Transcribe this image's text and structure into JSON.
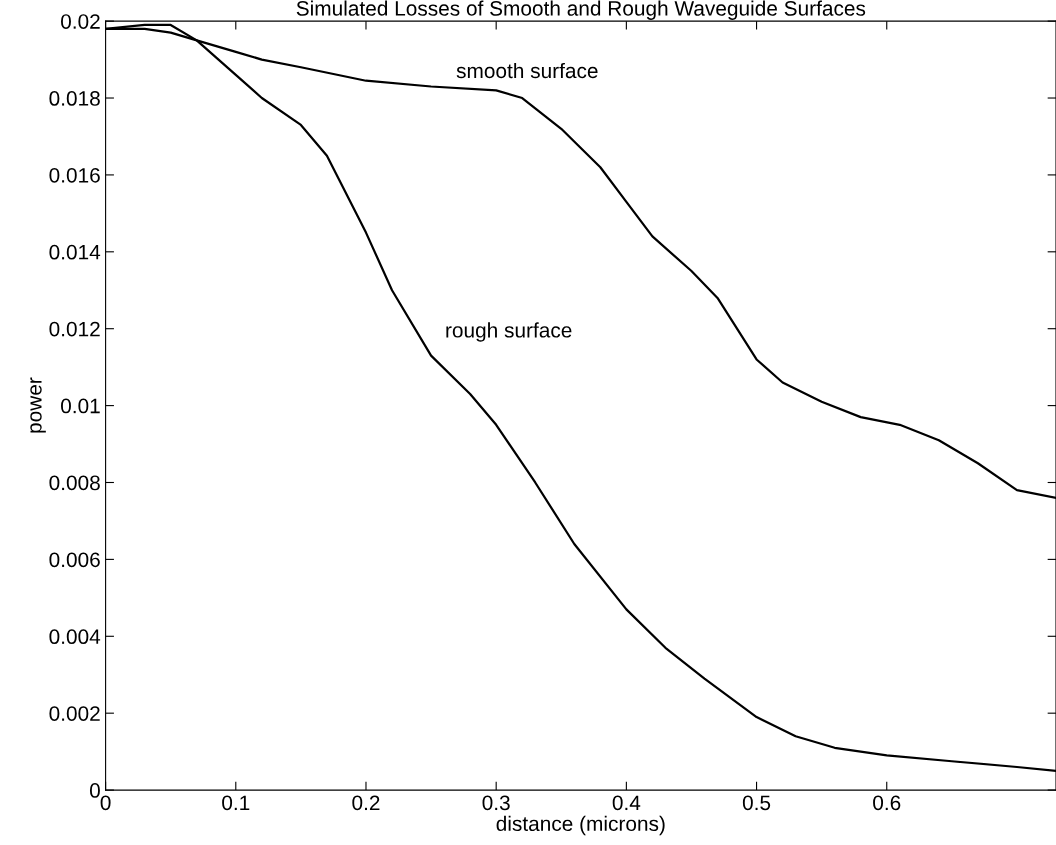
{
  "chart_data": {
    "type": "line",
    "title": "Simulated Losses of Smooth and Rough Waveguide Surfaces",
    "xlabel": "distance (microns)",
    "ylabel": "power",
    "xlim": [
      0,
      0.73
    ],
    "ylim": [
      0,
      0.02
    ],
    "xticks": [
      0,
      0.1,
      0.2,
      0.3,
      0.4,
      0.5,
      0.6
    ],
    "yticks": [
      0,
      0.002,
      0.004,
      0.006,
      0.008,
      0.01,
      0.012,
      0.014,
      0.016,
      0.018,
      0.02
    ],
    "grid": false,
    "legend": false,
    "series": [
      {
        "name": "smooth surface",
        "color": "#000000",
        "x": [
          0,
          0.03,
          0.05,
          0.07,
          0.1,
          0.12,
          0.15,
          0.2,
          0.25,
          0.3,
          0.32,
          0.35,
          0.38,
          0.4,
          0.42,
          0.45,
          0.47,
          0.5,
          0.52,
          0.55,
          0.58,
          0.61,
          0.64,
          0.67,
          0.7,
          0.73
        ],
        "values": [
          0.0198,
          0.0198,
          0.0197,
          0.0195,
          0.0192,
          0.019,
          0.0188,
          0.01845,
          0.0183,
          0.0182,
          0.018,
          0.0172,
          0.0162,
          0.0153,
          0.0144,
          0.0135,
          0.0128,
          0.0112,
          0.0106,
          0.0101,
          0.0097,
          0.0095,
          0.0091,
          0.0085,
          0.0078,
          0.0076
        ]
      },
      {
        "name": "rough surface",
        "color": "#000000",
        "x": [
          0,
          0.03,
          0.05,
          0.07,
          0.1,
          0.12,
          0.15,
          0.17,
          0.2,
          0.22,
          0.25,
          0.28,
          0.3,
          0.33,
          0.36,
          0.4,
          0.43,
          0.46,
          0.5,
          0.53,
          0.56,
          0.6,
          0.65,
          0.7,
          0.73
        ],
        "values": [
          0.0198,
          0.0199,
          0.0199,
          0.0195,
          0.0186,
          0.018,
          0.0173,
          0.0165,
          0.0145,
          0.013,
          0.0113,
          0.0103,
          0.0095,
          0.008,
          0.0064,
          0.0047,
          0.0037,
          0.0029,
          0.0019,
          0.0014,
          0.0011,
          0.0009,
          0.00075,
          0.0006,
          0.0005
        ]
      }
    ]
  }
}
